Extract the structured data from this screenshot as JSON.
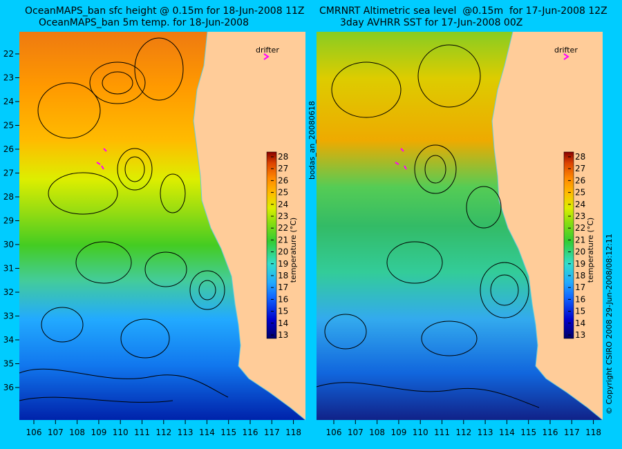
{
  "left_panel": {
    "title_line1": "OceanMAPS_ban sfc height @ 0.15m for 18-Jun-2008 11Z",
    "title_line2": "OceanMAPS_ban 5m temp. for 18-Jun-2008",
    "drifter_label": "drifter"
  },
  "right_panel": {
    "title_line1": "CMRNRT Altimetric sea level  @0.15m  for 17-Jun-2008 12Z",
    "title_line2": "3day AVHRR SST for 17-Jun-2008 00Z",
    "drifter_label": "drifter"
  },
  "side_labels": {
    "middle": "bodas_an_20080618",
    "right": "© Copyright CSIRO 2008    29-Jun-2008/08:12:11"
  },
  "axes": {
    "longitude_ticks": [
      "106",
      "107",
      "108",
      "109",
      "110",
      "111",
      "112",
      "113",
      "114",
      "115",
      "116",
      "117",
      "118"
    ],
    "latitude_ticks": [
      "22",
      "23",
      "24",
      "25",
      "26",
      "27",
      "28",
      "29",
      "30",
      "31",
      "32",
      "33",
      "34",
      "35",
      "36"
    ]
  },
  "colorbar": {
    "label": "temperature (°C)",
    "ticks": [
      "28",
      "27",
      "26",
      "25",
      "24",
      "23",
      "22",
      "21",
      "20",
      "19",
      "18",
      "17",
      "16",
      "15",
      "14",
      "13"
    ]
  },
  "colors": {
    "background": "#00ccff",
    "land": "#ffcc99",
    "contour": "#000000",
    "coastline_detail": "#66ccdd",
    "drifter": "#ff00ff",
    "scale_stops": [
      "#000066",
      "#0000cc",
      "#1166ff",
      "#22aaff",
      "#33ddcc",
      "#33cc33",
      "#88dd11",
      "#ddee00",
      "#ffbb00",
      "#ff8800",
      "#dd4400",
      "#880000"
    ]
  },
  "map_legend_icons": [
    "drifter-arrow-icon"
  ]
}
